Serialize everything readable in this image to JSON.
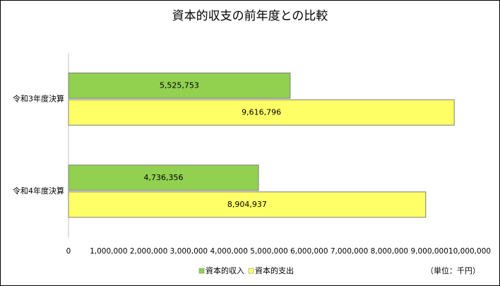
{
  "chart_data": {
    "type": "hbar",
    "title": "資本的収支の前年度との比較",
    "categories": [
      "令和3年度決算",
      "令和4年度決算"
    ],
    "series": [
      {
        "name": "資本的収入",
        "color": "#92d050",
        "values": [
          5525753,
          4736356
        ],
        "value_labels": [
          "5,525,753",
          "4,736,356"
        ]
      },
      {
        "name": "資本的支出",
        "color": "#ffff66",
        "values": [
          9616796,
          8904937
        ],
        "value_labels": [
          "9,616,796",
          "8,904,937"
        ]
      }
    ],
    "xlim": [
      0,
      10000000
    ],
    "xticks": [
      0,
      {
        "value": 1000000,
        "label": "1,000,000"
      },
      {
        "value": 2000000,
        "label": "2,000,000"
      },
      {
        "value": 3000000,
        "label": "3,000,000"
      },
      {
        "value": 4000000,
        "label": "4,000,000"
      },
      {
        "value": 5000000,
        "label": "5,000,000"
      },
      {
        "value": 6000000,
        "label": "6,000,000"
      },
      {
        "value": 7000000,
        "label": "7,000,000"
      },
      {
        "value": 8000000,
        "label": "8,000,000"
      },
      {
        "value": 9000000,
        "label": "9,000,000"
      },
      {
        "value": 10000000,
        "label": "10,000,000"
      }
    ],
    "grid": false,
    "unit_label": "（単位：千円）"
  }
}
